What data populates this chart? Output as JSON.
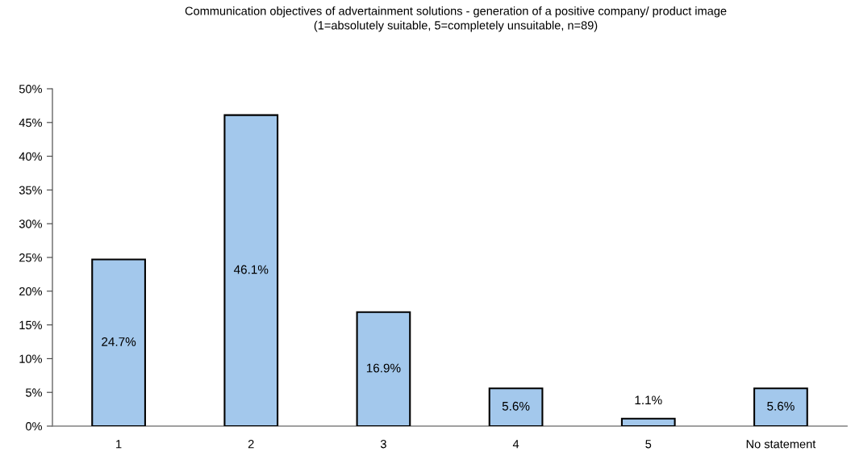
{
  "chart_data": {
    "type": "bar",
    "title": "Communication objectives of advertainment solutions - generation of a positive company/ product image\n(1=absolutely suitable, 5=completely unsuitable, n=89)",
    "categories": [
      "1",
      "2",
      "3",
      "4",
      "5",
      "No statement"
    ],
    "values": [
      24.7,
      46.1,
      16.9,
      5.6,
      1.1,
      5.6
    ],
    "color": "#a3c8ec",
    "ylim": [
      0,
      50
    ],
    "yticks": [
      {
        "value": 0,
        "label": "0%"
      },
      {
        "value": 5,
        "label": "5%"
      },
      {
        "value": 10,
        "label": "10%"
      },
      {
        "value": 15,
        "label": "15%"
      },
      {
        "value": 20,
        "label": "20%"
      },
      {
        "value": 25,
        "label": "25%"
      },
      {
        "value": 30,
        "label": "30%"
      },
      {
        "value": 35,
        "label": "35%"
      },
      {
        "value": 40,
        "label": "40%"
      },
      {
        "value": 45,
        "label": "45%"
      },
      {
        "value": 50,
        "label": "50%"
      }
    ],
    "value_labels": [
      "24.7%",
      "46.1%",
      "16.9%",
      "5.6%",
      "1.1%",
      "5.6%"
    ],
    "grid": false,
    "legend": false
  }
}
